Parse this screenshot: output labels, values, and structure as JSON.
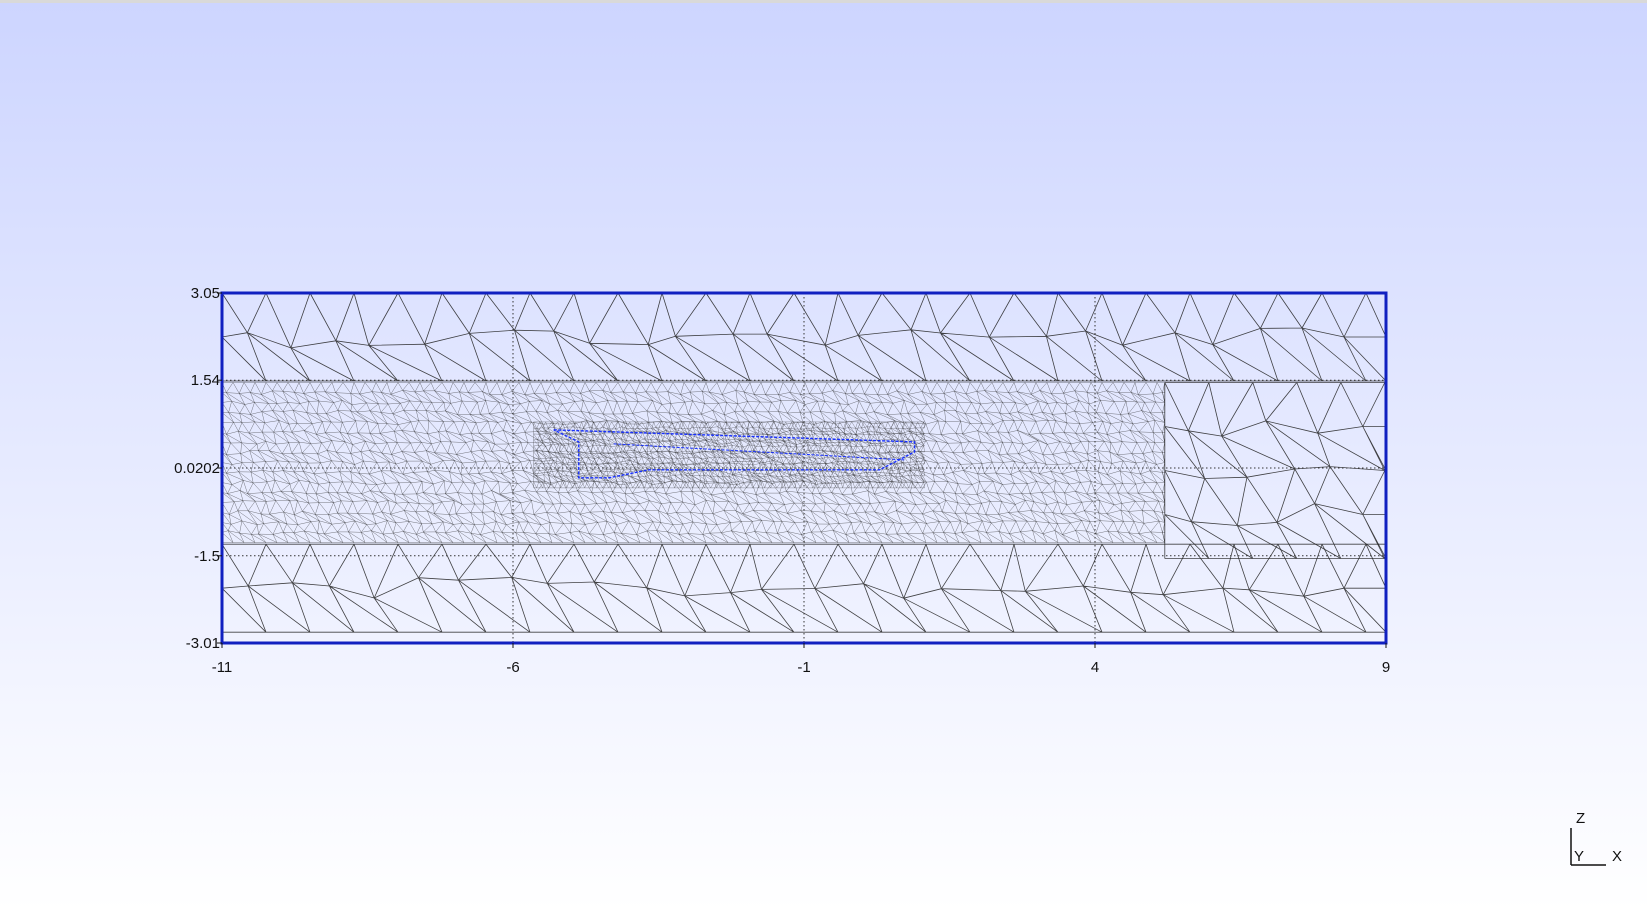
{
  "viewer": {
    "background_top": "#cdd5ff",
    "background_bottom": "#ffffff",
    "mesh_line_color": "#222222",
    "boundary_color": "#1020c0",
    "inner_body_color": "#1830ff"
  },
  "plot": {
    "x_range": [
      -11,
      9
    ],
    "z_range": [
      -3.01,
      3.05
    ],
    "x_ticks": [
      {
        "value": -11,
        "label": "-11"
      },
      {
        "value": -6,
        "label": "-6"
      },
      {
        "value": -1,
        "label": "-1"
      },
      {
        "value": 4,
        "label": "4"
      },
      {
        "value": 9,
        "label": "9"
      }
    ],
    "z_ticks": [
      {
        "value": 3.05,
        "label": "3.05"
      },
      {
        "value": 1.54,
        "label": "1.54"
      },
      {
        "value": 0.0202,
        "label": "0.0202"
      },
      {
        "value": -1.5,
        "label": "-1.5"
      },
      {
        "value": -3.01,
        "label": "-3.01"
      }
    ],
    "refined_region": {
      "x": [
        -11,
        5.2
      ],
      "z": [
        -1.3,
        1.5
      ]
    },
    "inner_body": {
      "x": [
        -5.3,
        0.9
      ],
      "z": [
        -0.15,
        0.68
      ]
    }
  },
  "triad": {
    "z_label": "Z",
    "y_label": "Y",
    "x_label": "X"
  }
}
